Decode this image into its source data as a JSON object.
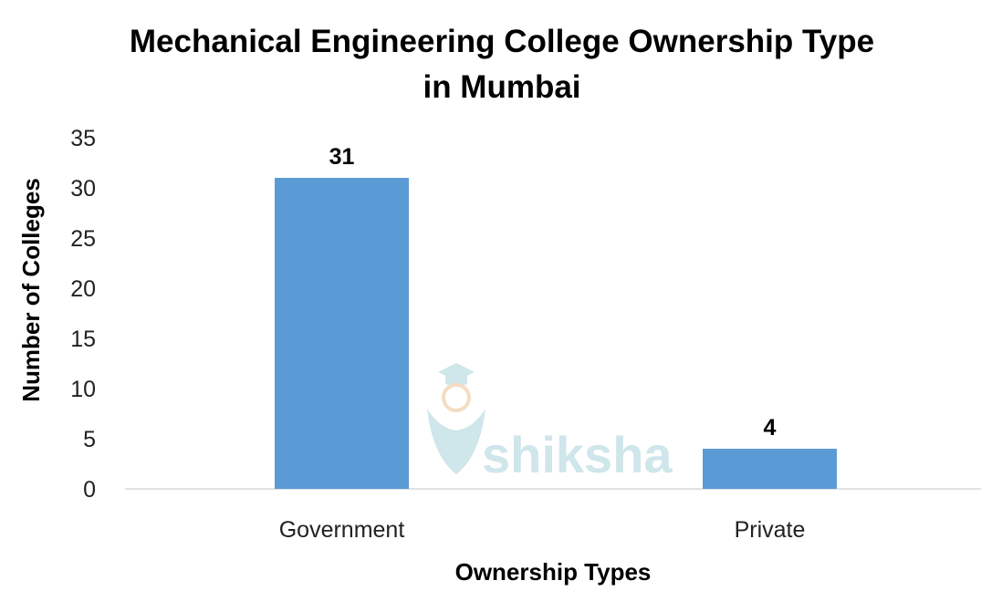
{
  "chart_data": {
    "type": "bar",
    "title_lines": [
      "Mechanical Engineering College Ownership Type",
      "in Mumbai"
    ],
    "categories": [
      "Government",
      "Private"
    ],
    "values": [
      31,
      4
    ],
    "data_labels": [
      "31",
      "4"
    ],
    "xlabel": "Ownership Types",
    "ylabel": "Number of Colleges",
    "ylim": [
      0,
      35
    ],
    "yticks": [
      "0",
      "5",
      "10",
      "15",
      "20",
      "25",
      "30",
      "35"
    ],
    "grid": false,
    "legend": "none",
    "bar_color": "#5b9bd5"
  },
  "watermark": {
    "text": "shiksha",
    "icon": "graduation-cap-icon"
  }
}
